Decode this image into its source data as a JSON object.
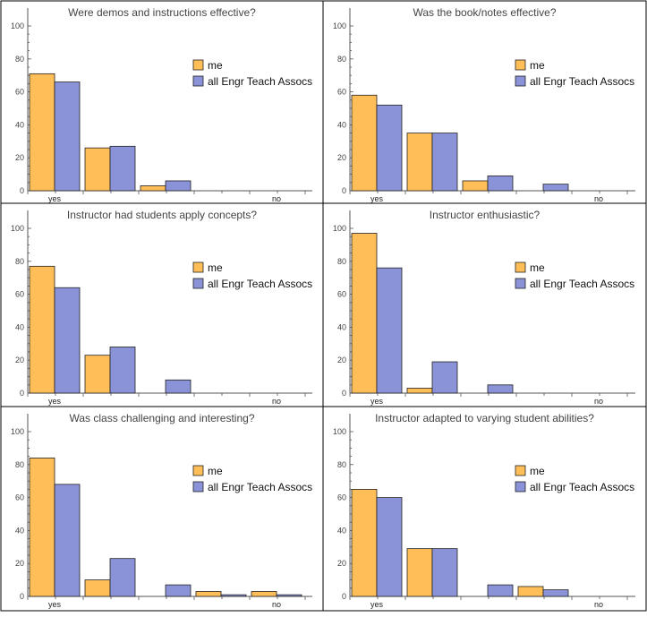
{
  "colors": {
    "me": "#FFBE57",
    "all": "#8A92D8",
    "frame": "#000000",
    "axis": "#555555"
  },
  "chart_data": [
    {
      "type": "bar",
      "title": "Were demos and instructions effective?",
      "categories": [
        "yes",
        "",
        "",
        "",
        "no"
      ],
      "series": [
        {
          "name": "me",
          "values": [
            71,
            26,
            3,
            0,
            0
          ]
        },
        {
          "name": "all Engr Teach Assocs",
          "values": [
            66,
            27,
            6,
            0,
            0
          ]
        }
      ],
      "yticks": [
        0,
        20,
        40,
        60,
        80,
        100
      ],
      "ylim": [
        0,
        100
      ],
      "legend": "right"
    },
    {
      "type": "bar",
      "title": "Was the book/notes effective?",
      "categories": [
        "yes",
        "",
        "",
        "",
        "no"
      ],
      "series": [
        {
          "name": "me",
          "values": [
            58,
            35,
            6,
            0,
            0
          ]
        },
        {
          "name": "all Engr Teach Assocs",
          "values": [
            52,
            35,
            9,
            4,
            0
          ]
        }
      ],
      "yticks": [
        0,
        20,
        40,
        60,
        80,
        100
      ],
      "ylim": [
        0,
        100
      ],
      "legend": "right"
    },
    {
      "type": "bar",
      "title": "Instructor had students apply concepts?",
      "categories": [
        "yes",
        "",
        "",
        "",
        "no"
      ],
      "series": [
        {
          "name": "me",
          "values": [
            77,
            23,
            0,
            0,
            0
          ]
        },
        {
          "name": "all Engr Teach Assocs",
          "values": [
            64,
            28,
            8,
            0,
            0
          ]
        }
      ],
      "yticks": [
        0,
        20,
        40,
        60,
        80,
        100
      ],
      "ylim": [
        0,
        100
      ],
      "legend": "right"
    },
    {
      "type": "bar",
      "title": "Instructor enthusiastic?",
      "categories": [
        "yes",
        "",
        "",
        "",
        "no"
      ],
      "series": [
        {
          "name": "me",
          "values": [
            97,
            3,
            0,
            0,
            0
          ]
        },
        {
          "name": "all Engr Teach Assocs",
          "values": [
            76,
            19,
            5,
            0,
            0
          ]
        }
      ],
      "yticks": [
        0,
        20,
        40,
        60,
        80,
        100
      ],
      "ylim": [
        0,
        100
      ],
      "legend": "right"
    },
    {
      "type": "bar",
      "title": "Was class challenging and interesting?",
      "categories": [
        "yes",
        "",
        "",
        "",
        "no"
      ],
      "series": [
        {
          "name": "me",
          "values": [
            84,
            10,
            0,
            3,
            3
          ]
        },
        {
          "name": "all Engr Teach Assocs",
          "values": [
            68,
            23,
            7,
            1,
            1
          ]
        }
      ],
      "yticks": [
        0,
        20,
        40,
        60,
        80,
        100
      ],
      "ylim": [
        0,
        100
      ],
      "legend": "right"
    },
    {
      "type": "bar",
      "title": "Instructor adapted to varying student abilities?",
      "categories": [
        "yes",
        "",
        "",
        "",
        "no"
      ],
      "series": [
        {
          "name": "me",
          "values": [
            65,
            29,
            0,
            6,
            0
          ]
        },
        {
          "name": "all Engr Teach Assocs",
          "values": [
            60,
            29,
            7,
            4,
            0
          ]
        }
      ],
      "yticks": [
        0,
        20,
        40,
        60,
        80,
        100
      ],
      "ylim": [
        0,
        100
      ],
      "legend": "right"
    }
  ]
}
